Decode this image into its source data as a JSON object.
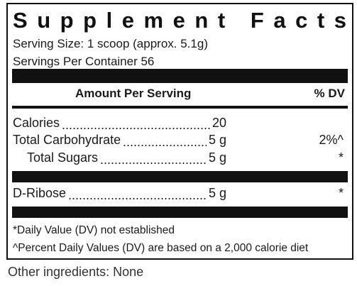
{
  "label": {
    "title": "Supplement Facts",
    "serving_size": "Serving Size: 1 scoop (approx. 5.1g)",
    "servings_per_container": "Servings Per Container 56",
    "header": {
      "amount": "Amount Per Serving",
      "dv": "% DV"
    },
    "rows": [
      {
        "name": "Calories",
        "amount": "20"
      },
      {
        "name": "Total Carbohydrate",
        "amount": "5 g",
        "dv": "2%^"
      },
      {
        "name": "Total Sugars",
        "amount": "5 g",
        "dv": "*"
      },
      {
        "name": "D-Ribose",
        "amount": "5 g",
        "dv": "*"
      }
    ],
    "footnotes": [
      "*Daily Value (DV) not established",
      "^Percent Daily Values (DV) are based on a 2,000 calorie diet"
    ]
  },
  "other_ingredients": "Other ingredients: None"
}
